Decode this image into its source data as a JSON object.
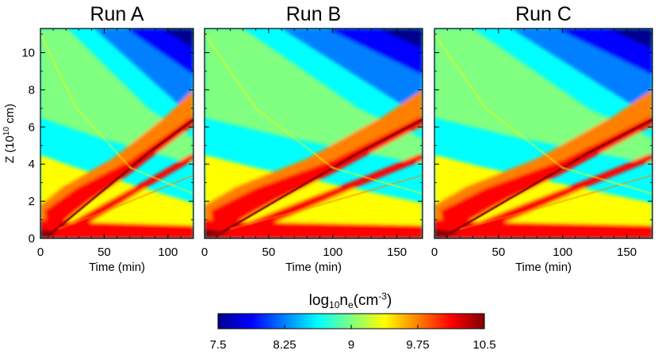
{
  "colormap": [
    "#00008f",
    "#0000ff",
    "#0080ff",
    "#00ffff",
    "#80ff80",
    "#ffff00",
    "#ff8000",
    "#ff0000",
    "#800000"
  ],
  "chart_data": {
    "type": "heatmap",
    "panels": [
      {
        "title": "Run A",
        "xlabel": "Time (min)",
        "xlim": [
          0,
          120
        ],
        "xticks": [
          0,
          50,
          100
        ],
        "ylim": [
          0,
          11.3
        ]
      },
      {
        "title": "Run B",
        "xlabel": "Time (min)",
        "xlim": [
          0,
          170
        ],
        "xticks": [
          0,
          50,
          100,
          150
        ],
        "ylim": [
          0,
          11.3
        ]
      },
      {
        "title": "Run C",
        "xlabel": "Time (min)",
        "xlim": [
          0,
          170
        ],
        "xticks": [
          0,
          50,
          100,
          150
        ],
        "ylim": [
          0,
          11.3
        ]
      }
    ],
    "ylabel_main": "Z (10",
    "ylabel_exp": "10",
    "ylabel_tail": " cm)",
    "yticks": [
      0,
      2,
      4,
      6,
      8,
      10
    ],
    "colorbar": {
      "label_prefix": "log",
      "label_sub": "10",
      "label_mid": "n",
      "label_sub2": "e",
      "label_unit": "(cm",
      "label_exp": "-3",
      "label_end": ")",
      "range": [
        7.5,
        10.5
      ],
      "ticks": [
        "7.5",
        "8.25",
        "9",
        "9.75",
        "10.5"
      ]
    }
  }
}
